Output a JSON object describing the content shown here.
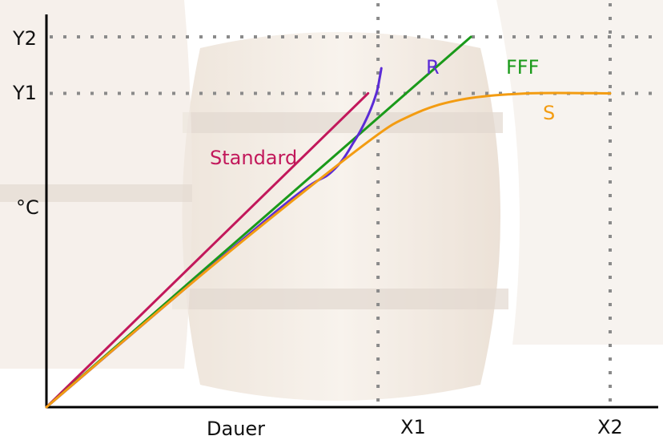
{
  "chart_data": {
    "type": "line",
    "xlabel": "Dauer",
    "ylabel": "°C",
    "x_ticks": [
      {
        "label": "X1",
        "value": 1.0
      },
      {
        "label": "X2",
        "value": 1.7
      }
    ],
    "y_ticks": [
      {
        "label": "Y1",
        "value": 1.0
      },
      {
        "label": "Y2",
        "value": 1.18
      }
    ],
    "xlim": [
      0,
      1.7
    ],
    "ylim": [
      0,
      1.18
    ],
    "guides": {
      "x": [
        1.0,
        1.7
      ],
      "y": [
        1.0,
        1.18
      ]
    },
    "grid": false,
    "series": [
      {
        "name": "Standard",
        "color": "#c2185b",
        "x": [
          0,
          0.97
        ],
        "y": [
          0,
          1.0
        ]
      },
      {
        "name": "FFF",
        "color": "#1a9a1a",
        "x": [
          0,
          1.28
        ],
        "y": [
          0,
          1.18
        ]
      },
      {
        "name": "R",
        "color": "#5b2bd6",
        "x": [
          0,
          0.7,
          0.86,
          0.93,
          0.97,
          0.995,
          1.005,
          1.01
        ],
        "y": [
          0,
          0.63,
          0.75,
          0.85,
          0.93,
          1.0,
          1.05,
          1.08
        ]
      },
      {
        "name": "S",
        "color": "#f39c12",
        "x": [
          0,
          0.5,
          0.95,
          1.1,
          1.25,
          1.45,
          1.7
        ],
        "y": [
          0,
          0.45,
          0.83,
          0.93,
          0.98,
          1.0,
          1.0
        ]
      }
    ]
  }
}
